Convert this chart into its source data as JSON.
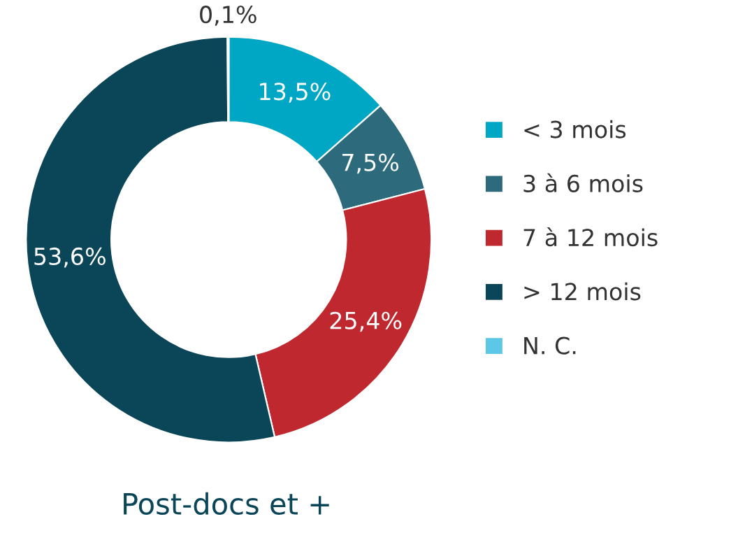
{
  "chart_data": {
    "type": "donut",
    "title": "Post-docs et +",
    "categories": [
      "< 3 mois",
      "3 à 6 mois",
      "7 à 12 mois",
      "> 12 mois",
      "N. C."
    ],
    "values": [
      13.5,
      7.5,
      25.4,
      53.6,
      0.1
    ],
    "value_labels": [
      "13,5%",
      "7,5%",
      "25,4%",
      "53,6%",
      "0,1%"
    ],
    "colors": [
      "#00a7c4",
      "#2d6b7c",
      "#c0282f",
      "#0b4658",
      "#5cc8e6"
    ],
    "legend": "right"
  }
}
